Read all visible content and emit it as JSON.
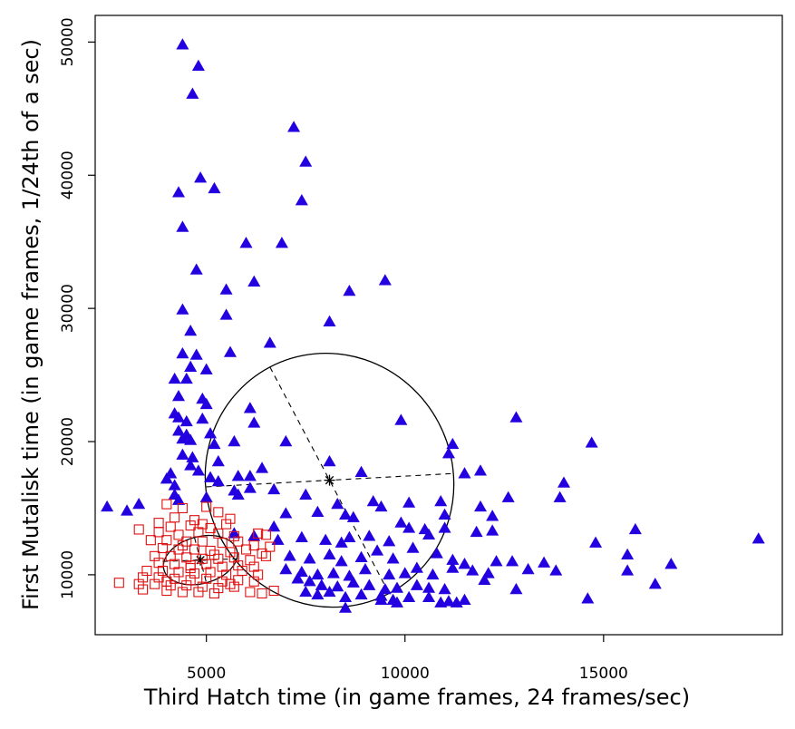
{
  "chart_data": {
    "type": "scatter",
    "xlabel": "Third Hatch time (in game frames, 24 frames/sec)",
    "ylabel": "First Mutalisk time (in game frames, 1/24th of a sec)",
    "xlim": [
      2200,
      19500
    ],
    "ylim": [
      5500,
      52000
    ],
    "xticks": [
      5000,
      10000,
      15000
    ],
    "yticks": [
      10000,
      20000,
      30000,
      40000,
      50000
    ],
    "grid": false,
    "series": [
      {
        "marker": "triangle-filled",
        "color": "#2200e0",
        "points": [
          [
            4400,
            49800
          ],
          [
            4800,
            48200
          ],
          [
            4650,
            46100
          ],
          [
            7200,
            43600
          ],
          [
            7500,
            41000
          ],
          [
            4850,
            39800
          ],
          [
            5200,
            39000
          ],
          [
            4300,
            38700
          ],
          [
            7400,
            38100
          ],
          [
            4400,
            36100
          ],
          [
            6000,
            34900
          ],
          [
            6900,
            34900
          ],
          [
            4750,
            32900
          ],
          [
            6200,
            32000
          ],
          [
            5500,
            31400
          ],
          [
            9500,
            32100
          ],
          [
            8600,
            31300
          ],
          [
            4400,
            29900
          ],
          [
            5500,
            29500
          ],
          [
            4600,
            28300
          ],
          [
            8100,
            29000
          ],
          [
            6600,
            27400
          ],
          [
            4400,
            26600
          ],
          [
            4750,
            26500
          ],
          [
            5600,
            26700
          ],
          [
            4600,
            25600
          ],
          [
            5000,
            25400
          ],
          [
            4200,
            24700
          ],
          [
            4500,
            24700
          ],
          [
            4300,
            23400
          ],
          [
            4900,
            23200
          ],
          [
            5000,
            22800
          ],
          [
            6100,
            22500
          ],
          [
            4200,
            22100
          ],
          [
            4300,
            21800
          ],
          [
            4500,
            21500
          ],
          [
            4900,
            21700
          ],
          [
            6200,
            21400
          ],
          [
            4300,
            20800
          ],
          [
            4500,
            20500
          ],
          [
            5100,
            20600
          ],
          [
            4400,
            20200
          ],
          [
            4600,
            20100
          ],
          [
            5200,
            19800
          ],
          [
            5700,
            20000
          ],
          [
            7000,
            20000
          ],
          [
            4400,
            19000
          ],
          [
            4650,
            18800
          ],
          [
            5300,
            18500
          ],
          [
            4600,
            18200
          ],
          [
            4800,
            17800
          ],
          [
            5100,
            17300
          ],
          [
            5800,
            17400
          ],
          [
            6100,
            17400
          ],
          [
            6400,
            18000
          ],
          [
            4000,
            17200
          ],
          [
            4100,
            17600
          ],
          [
            5300,
            17000
          ],
          [
            4200,
            16700
          ],
          [
            5700,
            16300
          ],
          [
            6100,
            16500
          ],
          [
            6700,
            16400
          ],
          [
            8100,
            18500
          ],
          [
            8900,
            17700
          ],
          [
            9900,
            21600
          ],
          [
            4200,
            16000
          ],
          [
            4300,
            15600
          ],
          [
            5000,
            15800
          ],
          [
            5800,
            16000
          ],
          [
            7500,
            16000
          ],
          [
            8300,
            15300
          ],
          [
            9200,
            15500
          ],
          [
            10100,
            15400
          ],
          [
            11100,
            19100
          ],
          [
            11200,
            19800
          ],
          [
            11500,
            17600
          ],
          [
            11900,
            17800
          ],
          [
            12800,
            21800
          ],
          [
            14700,
            19900
          ],
          [
            2500,
            15100
          ],
          [
            3000,
            14800
          ],
          [
            3300,
            15300
          ],
          [
            7000,
            14600
          ],
          [
            7800,
            14700
          ],
          [
            8500,
            14500
          ],
          [
            8700,
            14300
          ],
          [
            9400,
            15100
          ],
          [
            9900,
            13900
          ],
          [
            10500,
            13400
          ],
          [
            10900,
            15500
          ],
          [
            11000,
            14500
          ],
          [
            11900,
            15100
          ],
          [
            12200,
            14400
          ],
          [
            12600,
            15800
          ],
          [
            13900,
            15800
          ],
          [
            14000,
            16900
          ],
          [
            5700,
            13100
          ],
          [
            6200,
            12900
          ],
          [
            6700,
            13600
          ],
          [
            6800,
            12600
          ],
          [
            7400,
            12800
          ],
          [
            8000,
            12600
          ],
          [
            8400,
            12400
          ],
          [
            8600,
            12800
          ],
          [
            9100,
            12900
          ],
          [
            9600,
            12500
          ],
          [
            10100,
            13500
          ],
          [
            10600,
            13000
          ],
          [
            11000,
            13500
          ],
          [
            11800,
            13200
          ],
          [
            12200,
            13300
          ],
          [
            7100,
            11400
          ],
          [
            7600,
            11200
          ],
          [
            8100,
            11500
          ],
          [
            8400,
            11000
          ],
          [
            8900,
            11300
          ],
          [
            9300,
            11800
          ],
          [
            9700,
            11200
          ],
          [
            10200,
            12000
          ],
          [
            10800,
            11600
          ],
          [
            11200,
            11100
          ],
          [
            11500,
            10800
          ],
          [
            12300,
            11000
          ],
          [
            15800,
            13400
          ],
          [
            15600,
            11500
          ],
          [
            14800,
            12400
          ],
          [
            12700,
            11000
          ],
          [
            16700,
            10800
          ],
          [
            18900,
            12700
          ],
          [
            7000,
            10400
          ],
          [
            7400,
            10200
          ],
          [
            7800,
            10000
          ],
          [
            8200,
            10100
          ],
          [
            8600,
            9900
          ],
          [
            9000,
            10400
          ],
          [
            9600,
            10000
          ],
          [
            10000,
            10100
          ],
          [
            10300,
            10500
          ],
          [
            10700,
            10000
          ],
          [
            11200,
            10500
          ],
          [
            11700,
            10300
          ],
          [
            12100,
            10100
          ],
          [
            13100,
            10400
          ],
          [
            13800,
            10300
          ],
          [
            13500,
            10900
          ],
          [
            15600,
            10300
          ],
          [
            7300,
            9700
          ],
          [
            7600,
            9500
          ],
          [
            7900,
            9200
          ],
          [
            8300,
            9100
          ],
          [
            8700,
            9400
          ],
          [
            9100,
            9200
          ],
          [
            9500,
            8900
          ],
          [
            9800,
            9000
          ],
          [
            10300,
            9200
          ],
          [
            10600,
            9000
          ],
          [
            11000,
            8900
          ],
          [
            12000,
            9600
          ],
          [
            12800,
            8900
          ],
          [
            16300,
            9300
          ],
          [
            7500,
            8700
          ],
          [
            7800,
            8500
          ],
          [
            8100,
            8700
          ],
          [
            8500,
            8300
          ],
          [
            8900,
            8500
          ],
          [
            9400,
            8400
          ],
          [
            9700,
            8100
          ],
          [
            10100,
            8300
          ],
          [
            10600,
            8300
          ],
          [
            11100,
            8000
          ],
          [
            11500,
            8100
          ],
          [
            14600,
            8200
          ],
          [
            8500,
            7500
          ],
          [
            9400,
            8100
          ],
          [
            9800,
            7900
          ],
          [
            10900,
            7900
          ],
          [
            11300,
            7900
          ]
        ]
      },
      {
        "marker": "square-open",
        "color": "#e01010",
        "points": [
          [
            4000,
            15300
          ],
          [
            4400,
            15000
          ],
          [
            5000,
            15100
          ],
          [
            5300,
            14700
          ],
          [
            4200,
            14300
          ],
          [
            4700,
            14100
          ],
          [
            5600,
            14200
          ],
          [
            3800,
            13900
          ],
          [
            4100,
            13600
          ],
          [
            4600,
            13700
          ],
          [
            5100,
            13500
          ],
          [
            5500,
            13800
          ],
          [
            3300,
            13400
          ],
          [
            3800,
            13200
          ],
          [
            4300,
            13000
          ],
          [
            4800,
            13200
          ],
          [
            5300,
            13100
          ],
          [
            5700,
            12900
          ],
          [
            6300,
            13100
          ],
          [
            6500,
            13000
          ],
          [
            3600,
            12600
          ],
          [
            4000,
            12600
          ],
          [
            4500,
            12500
          ],
          [
            4900,
            12500
          ],
          [
            5400,
            12400
          ],
          [
            5800,
            12500
          ],
          [
            6200,
            12200
          ],
          [
            6600,
            12100
          ],
          [
            3900,
            12000
          ],
          [
            4300,
            11900
          ],
          [
            4700,
            11900
          ],
          [
            5100,
            11800
          ],
          [
            5600,
            11700
          ],
          [
            6000,
            11900
          ],
          [
            6400,
            11600
          ],
          [
            3700,
            11400
          ],
          [
            4100,
            11400
          ],
          [
            4500,
            11300
          ],
          [
            4900,
            11200
          ],
          [
            5300,
            11200
          ],
          [
            5700,
            11300
          ],
          [
            6100,
            11100
          ],
          [
            6500,
            11400
          ],
          [
            3800,
            10900
          ],
          [
            4200,
            10800
          ],
          [
            4600,
            10700
          ],
          [
            5000,
            10800
          ],
          [
            5400,
            10600
          ],
          [
            5800,
            10700
          ],
          [
            6200,
            10600
          ],
          [
            3500,
            10300
          ],
          [
            3900,
            10300
          ],
          [
            4300,
            10200
          ],
          [
            4700,
            10100
          ],
          [
            5100,
            10200
          ],
          [
            5500,
            10000
          ],
          [
            5900,
            10300
          ],
          [
            6300,
            10000
          ],
          [
            3400,
            9800
          ],
          [
            3800,
            9800
          ],
          [
            4200,
            9700
          ],
          [
            4600,
            9600
          ],
          [
            5000,
            9700
          ],
          [
            5400,
            9500
          ],
          [
            5800,
            9600
          ],
          [
            6200,
            9500
          ],
          [
            2800,
            9400
          ],
          [
            3300,
            9300
          ],
          [
            3700,
            9300
          ],
          [
            4100,
            9200
          ],
          [
            4500,
            9200
          ],
          [
            4900,
            9100
          ],
          [
            5300,
            9000
          ],
          [
            5700,
            9100
          ],
          [
            3400,
            8900
          ],
          [
            4000,
            8800
          ],
          [
            4400,
            8700
          ],
          [
            4800,
            8700
          ],
          [
            5200,
            8600
          ],
          [
            6100,
            8700
          ],
          [
            6400,
            8600
          ],
          [
            6700,
            8800
          ],
          [
            4000,
            9500
          ],
          [
            4600,
            10500
          ],
          [
            5200,
            11500
          ],
          [
            4400,
            12200
          ],
          [
            5600,
            9300
          ],
          [
            4900,
            13800
          ]
        ]
      }
    ],
    "ellipses": [
      {
        "center": [
          8100,
          17100
        ],
        "major_axis_end_upper": [
          6600,
          25600
        ],
        "major_axis_end_lower": [
          9600,
          8600
        ],
        "minor_axis_end_left": [
          5000,
          16600
        ],
        "minor_axis_end_right": [
          11200,
          17600
        ]
      },
      {
        "center": [
          4850,
          11100
        ],
        "major_axis_end_upper": [
          4700,
          12800
        ],
        "major_axis_end_lower": [
          5000,
          9400
        ],
        "minor_axis_end_left": [
          3900,
          11000
        ],
        "minor_axis_end_right": [
          5800,
          11200
        ]
      }
    ]
  }
}
